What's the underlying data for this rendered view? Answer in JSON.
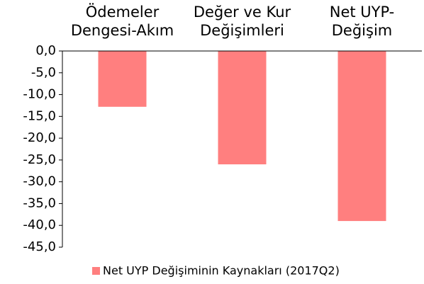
{
  "chart_data": {
    "type": "bar",
    "categories": [
      "Ödemeler Dengesi-Akım",
      "Değer ve Kur Değişimleri",
      "Net UYP-Değişim"
    ],
    "series": [
      {
        "name": "Net UYP Değişiminin Kaynakları (2017Q2)",
        "color": "#ff7f7f",
        "values": [
          -12.8,
          -26.0,
          -39.0
        ]
      }
    ],
    "ylim": [
      -45,
      0
    ],
    "yticks": [
      {
        "value": 0,
        "label": "0,0"
      },
      {
        "value": -5,
        "label": "-5,0"
      },
      {
        "value": -10,
        "label": "-10,0"
      },
      {
        "value": -15,
        "label": "-15,0"
      },
      {
        "value": -20,
        "label": "-20,0"
      },
      {
        "value": -25,
        "label": "-25,0"
      },
      {
        "value": -30,
        "label": "-30,0"
      },
      {
        "value": -35,
        "label": "-35,0"
      },
      {
        "value": -40,
        "label": "-40,0"
      },
      {
        "value": -45,
        "label": "-45,0"
      }
    ],
    "legend": "bottom",
    "grid": false
  }
}
